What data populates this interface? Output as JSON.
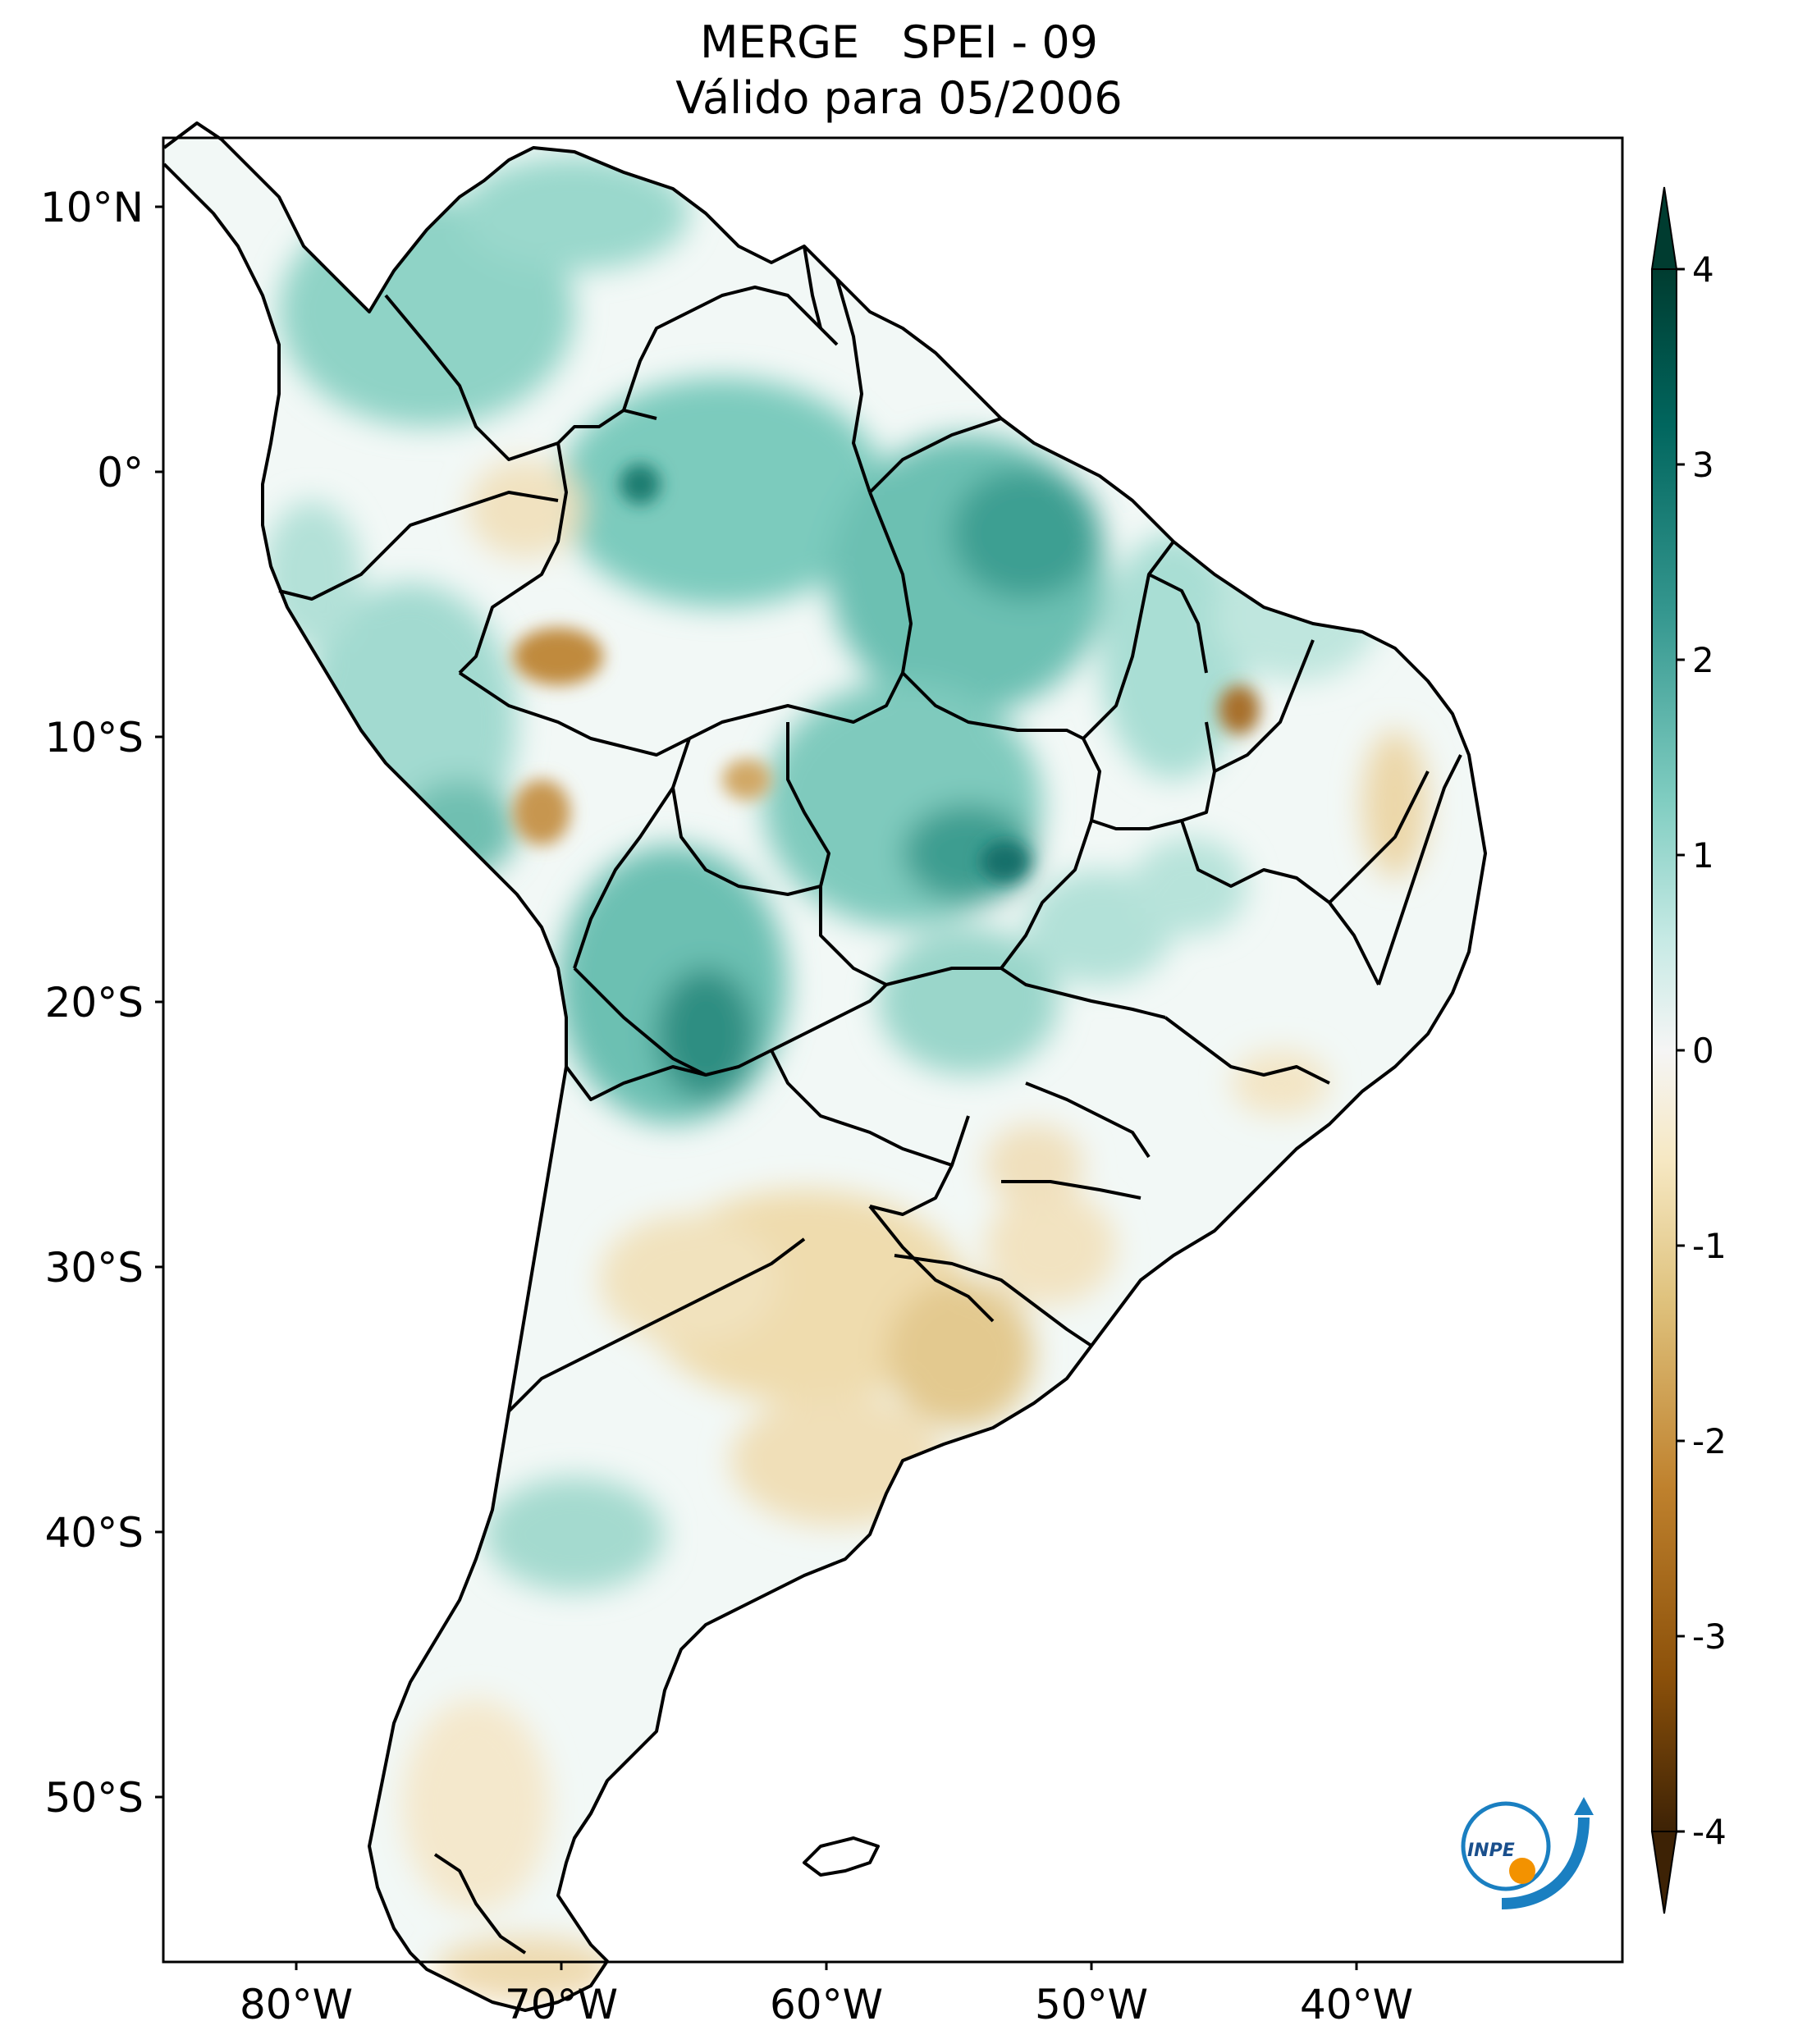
{
  "title": {
    "line1": "MERGE   SPEI - 09",
    "line2": "Válido para 05/2006"
  },
  "map": {
    "region": "South America",
    "lon_range": [
      -85,
      -30
    ],
    "lat_range": [
      -56,
      13
    ],
    "lon_ticks": [
      "80°W",
      "70°W",
      "60°W",
      "50°W",
      "40°W"
    ],
    "lat_ticks": [
      "10°N",
      "0°",
      "10°S",
      "20°S",
      "30°S",
      "40°S",
      "50°S"
    ]
  },
  "colorbar": {
    "ticks": [
      "4",
      "3",
      "2",
      "1",
      "0",
      "-1",
      "-2",
      "-3",
      "-4"
    ],
    "min": -4,
    "max": 4,
    "extend": "both",
    "colors": [
      "#3d2205",
      "#8c510a",
      "#bf812d",
      "#dfc27d",
      "#f6e8c3",
      "#f5f5f5",
      "#c7eae5",
      "#80cdc1",
      "#35978f",
      "#01665e",
      "#003c30"
    ]
  },
  "logo": {
    "text": "INPE"
  }
}
